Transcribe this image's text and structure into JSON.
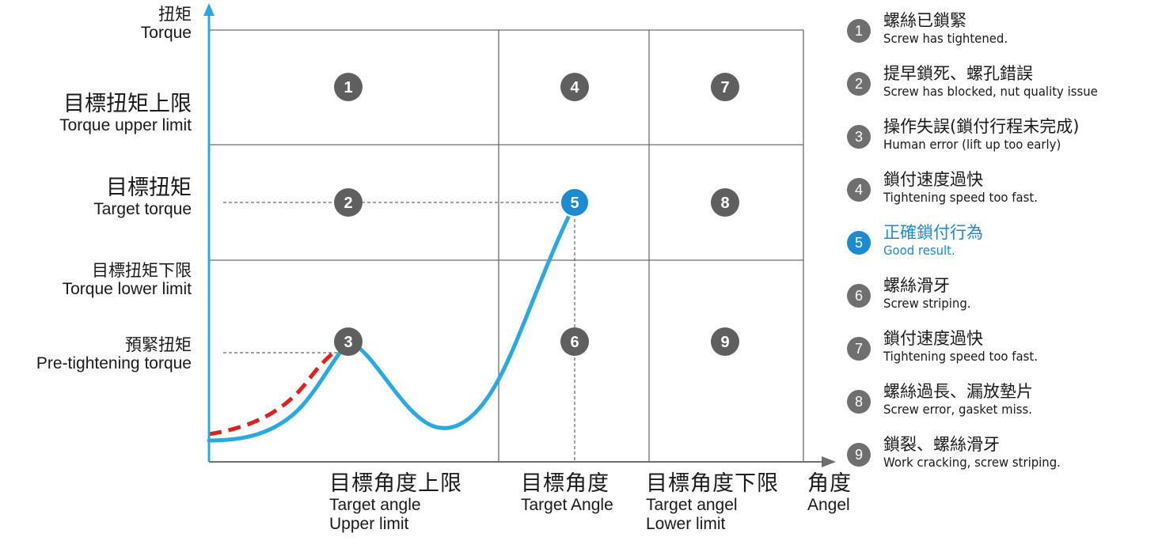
{
  "y_axis_labels": [
    {
      "zh": "扭矩",
      "en": "Torque"
    },
    {
      "zh": "目標扭矩上限",
      "en": "Torque upper limit"
    },
    {
      "zh": "目標扭矩",
      "en": "Target torque"
    },
    {
      "zh": "目標扭矩下限",
      "en": "Torque lower limit"
    },
    {
      "zh": "預緊扭矩",
      "en": "Pre-tightening torque"
    }
  ],
  "x_axis_labels": [
    {
      "zh": "目標角度上限",
      "en": "Target angle\nUpper limit"
    },
    {
      "zh": "目標角度",
      "en": "Target Angle"
    },
    {
      "zh": "目標角度下限",
      "en": "Target angel\nLower limit"
    },
    {
      "zh": "角度",
      "en": "Angel"
    }
  ],
  "grid_markers": [
    "1",
    "2",
    "3",
    "4",
    "5",
    "6",
    "7",
    "8",
    "9"
  ],
  "legend": [
    {
      "num": "1",
      "zh": "螺絲已鎖緊",
      "en": "Screw has tightened."
    },
    {
      "num": "2",
      "zh": "提早鎖死、螺孔錯誤",
      "en": "Screw has blocked, nut quality issue"
    },
    {
      "num": "3",
      "zh": "操作失誤(鎖付行程未完成)",
      "en": "Human error (lift up too early)"
    },
    {
      "num": "4",
      "zh": "鎖付速度過快",
      "en": "Tightening speed too fast."
    },
    {
      "num": "5",
      "zh": "正確鎖付行為",
      "en": "Good result."
    },
    {
      "num": "6",
      "zh": "螺絲滑牙",
      "en": "Screw striping."
    },
    {
      "num": "7",
      "zh": "鎖付速度過快",
      "en": "Tightening speed too fast."
    },
    {
      "num": "8",
      "zh": "螺絲過長、漏放墊片",
      "en": "Screw error, gasket miss."
    },
    {
      "num": "9",
      "zh": "鎖裂、螺絲滑牙",
      "en": "Work cracking, screw striping."
    }
  ],
  "colors": {
    "axis": "#29a9e0",
    "curve": "#29a9e0",
    "dashed_curve": "#e0201b",
    "grid": "#6e6e6e",
    "marker": "#5f5f5f",
    "good": "#1e8ad0"
  }
}
